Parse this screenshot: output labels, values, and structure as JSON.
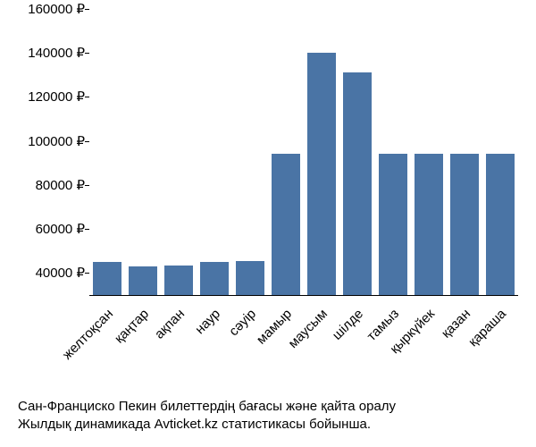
{
  "chart": {
    "type": "bar",
    "categories": [
      "желтоқсан",
      "қаңтар",
      "ақпан",
      "наур",
      "сәуір",
      "мамыр",
      "маусым",
      "шілде",
      "тамыз",
      "қыркүйек",
      "қазан",
      "қараша"
    ],
    "values": [
      45000,
      43000,
      43500,
      45000,
      45500,
      94000,
      140000,
      131000,
      94000,
      94000,
      94000,
      94000
    ],
    "ylim": [
      30000,
      160000
    ],
    "yticks": [
      40000,
      60000,
      80000,
      100000,
      120000,
      140000,
      160000
    ],
    "ytick_labels": [
      "40000 ₽",
      "60000 ₽",
      "80000 ₽",
      "100000 ₽",
      "120000 ₽",
      "140000 ₽",
      "160000 ₽"
    ],
    "bar_color": "#4a74a5",
    "bar_width": 0.82,
    "background_color": "#ffffff",
    "axis_color": "#000000",
    "label_fontsize": 15,
    "x_label_rotation": -45
  },
  "caption": {
    "line1": "Сан-Франциско Пекин билеттердің бағасы және қайта оралу",
    "line2": "Жылдық динамикада Avticket.kz статистикасы бойынша."
  }
}
